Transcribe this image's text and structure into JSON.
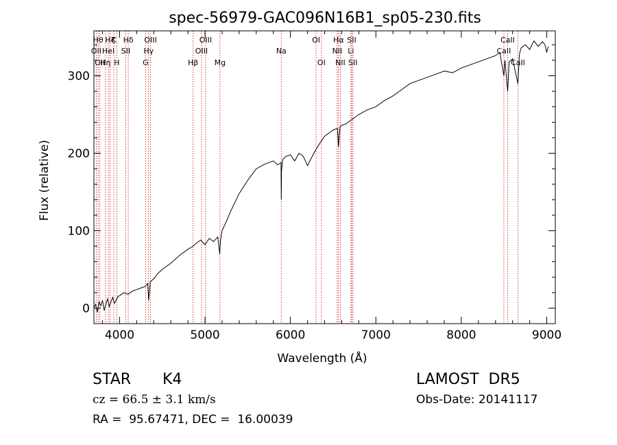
{
  "chart_data": {
    "type": "line",
    "title": "spec-56979-GAC096N16B1_sp05-230.fits",
    "xlabel": "Wavelength (Å)",
    "ylabel": "Flux (relative)",
    "xlim": [
      3700,
      9100
    ],
    "ylim": [
      -20,
      358
    ],
    "xticks": [
      4000,
      5000,
      6000,
      7000,
      8000,
      9000
    ],
    "yticks": [
      0,
      100,
      200,
      300
    ],
    "line_color": "#000000",
    "marker_color": "#cc0000",
    "series": [
      {
        "x": [
          3700,
          3720,
          3740,
          3760,
          3780,
          3800,
          3820,
          3840,
          3860,
          3880,
          3900,
          3920,
          3940,
          3960,
          3980,
          4000,
          4050,
          4100,
          4150,
          4200,
          4250,
          4300,
          4330,
          4340,
          4360,
          4400,
          4450,
          4500,
          4600,
          4700,
          4800,
          4860,
          4900,
          4950,
          5000,
          5050,
          5100,
          5150,
          5172,
          5180,
          5200,
          5250,
          5300,
          5400,
          5500,
          5600,
          5700,
          5800,
          5850,
          5890,
          5893,
          5896,
          5910,
          5950,
          6000,
          6050,
          6100,
          6150,
          6200,
          6250,
          6300,
          6350,
          6400,
          6450,
          6500,
          6550,
          6563,
          6580,
          6600,
          6650,
          6700,
          6750,
          6800,
          6900,
          7000,
          7100,
          7200,
          7300,
          7400,
          7500,
          7600,
          7700,
          7800,
          7900,
          8000,
          8100,
          8200,
          8300,
          8400,
          8450,
          8498,
          8510,
          8542,
          8560,
          8600,
          8662,
          8680,
          8700,
          8750,
          8800,
          8850,
          8900,
          8950,
          8980,
          9000,
          9010,
          9020
        ],
        "y": [
          0,
          5,
          -5,
          8,
          3,
          10,
          -3,
          5,
          12,
          2,
          8,
          14,
          6,
          10,
          15,
          16,
          20,
          18,
          22,
          24,
          26,
          28,
          32,
          10,
          34,
          38,
          45,
          50,
          58,
          68,
          76,
          80,
          84,
          88,
          82,
          90,
          86,
          92,
          70,
          86,
          100,
          112,
          125,
          148,
          165,
          180,
          186,
          190,
          185,
          188,
          140,
          178,
          192,
          196,
          198,
          190,
          200,
          196,
          184,
          195,
          205,
          214,
          222,
          226,
          230,
          232,
          208,
          234,
          236,
          238,
          242,
          246,
          250,
          256,
          260,
          268,
          274,
          282,
          290,
          294,
          298,
          302,
          306,
          304,
          310,
          314,
          318,
          322,
          326,
          330,
          300,
          320,
          280,
          318,
          322,
          290,
          328,
          336,
          340,
          334,
          345,
          338,
          344,
          340,
          330,
          335,
          338
        ]
      }
    ],
    "line_markers": [
      {
        "wavelength": 3727,
        "label": "OII",
        "row": 2
      },
      {
        "wavelength": 3750,
        "label": "Hθ",
        "row": 1
      },
      {
        "wavelength": 3770,
        "label": "OII",
        "row": 3
      },
      {
        "wavelength": 3835,
        "label": "Hη",
        "row": 3
      },
      {
        "wavelength": 3869,
        "label": "HeI",
        "row": 2
      },
      {
        "wavelength": 3889,
        "label": "Hζ",
        "row": 1
      },
      {
        "wavelength": 3933,
        "label": "K",
        "row": 1
      },
      {
        "wavelength": 3968,
        "label": "H",
        "row": 3
      },
      {
        "wavelength": 4072,
        "label": "SII",
        "row": 2
      },
      {
        "wavelength": 4102,
        "label": "Hδ",
        "row": 1
      },
      {
        "wavelength": 4305,
        "label": "G",
        "row": 3
      },
      {
        "wavelength": 4340,
        "label": "Hγ",
        "row": 2
      },
      {
        "wavelength": 4363,
        "label": "OIII",
        "row": 1
      },
      {
        "wavelength": 4861,
        "label": "Hβ",
        "row": 3
      },
      {
        "wavelength": 4959,
        "label": "OIII",
        "row": 2
      },
      {
        "wavelength": 5007,
        "label": "OIII",
        "row": 1
      },
      {
        "wavelength": 5175,
        "label": "Mg",
        "row": 3
      },
      {
        "wavelength": 5893,
        "label": "Na",
        "row": 2
      },
      {
        "wavelength": 6300,
        "label": "OI",
        "row": 1
      },
      {
        "wavelength": 6363,
        "label": "OI",
        "row": 3
      },
      {
        "wavelength": 6548,
        "label": "NII",
        "row": 2
      },
      {
        "wavelength": 6563,
        "label": "Hα",
        "row": 1
      },
      {
        "wavelength": 6584,
        "label": "NII",
        "row": 3
      },
      {
        "wavelength": 6708,
        "label": "Li",
        "row": 2
      },
      {
        "wavelength": 6717,
        "label": "SII",
        "row": 1
      },
      {
        "wavelength": 6731,
        "label": "SII",
        "row": 3
      },
      {
        "wavelength": 8498,
        "label": "CaII",
        "row": 2
      },
      {
        "wavelength": 8542,
        "label": "CaII",
        "row": 1
      },
      {
        "wavelength": 8662,
        "label": "CaII",
        "row": 3
      }
    ]
  },
  "info": {
    "object_class": "STAR",
    "subclass": "K4",
    "survey": "LAMOST  DR5",
    "redshift_text": "cz = 66.5 ± 3.1 km/s",
    "obs_date": "Obs-Date: 20141117",
    "coords": "RA =  95.67471, DEC =  16.00039"
  }
}
